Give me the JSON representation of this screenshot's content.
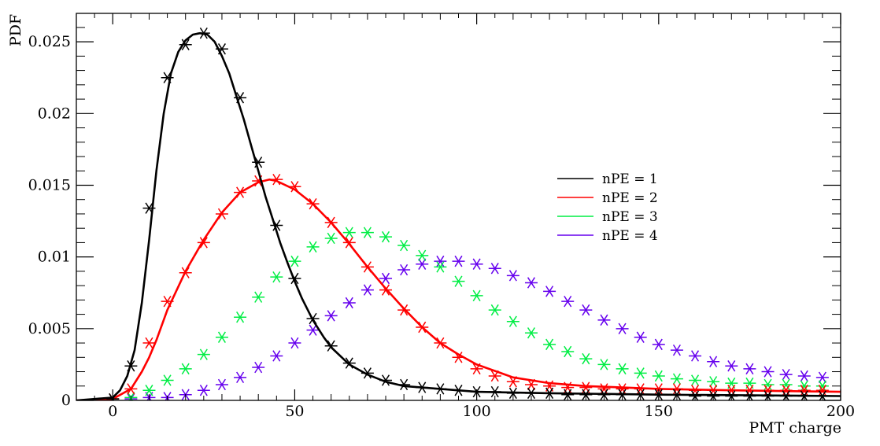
{
  "chart_data": {
    "type": "line",
    "xlabel": "PMT charge",
    "ylabel": "PDF",
    "xlim": [
      -10,
      200
    ],
    "ylim": [
      0,
      0.0255
    ],
    "x_ticks": [
      0,
      50,
      100,
      150,
      200
    ],
    "x_tick_labels": [
      "0",
      "50",
      "100",
      "150",
      "200"
    ],
    "y_ticks": [
      0,
      0.005,
      0.01,
      0.015,
      0.02,
      0.025
    ],
    "y_tick_labels": [
      "0",
      "0.005",
      "0.01",
      "0.015",
      "0.02",
      "0.025"
    ],
    "grid": false,
    "legend_position": "center-right",
    "series": [
      {
        "name": "nPE = 1",
        "color": "#000000",
        "curve": {
          "x": [
            -10,
            0,
            2,
            4,
            6,
            8,
            10,
            12,
            14,
            16,
            18,
            20,
            22,
            24,
            26,
            28,
            30,
            32,
            34,
            36,
            38,
            40,
            42,
            44,
            46,
            48,
            50,
            52,
            55,
            58,
            60,
            65,
            70,
            75,
            80,
            90,
            100,
            120,
            150,
            200
          ],
          "y": [
            0,
            0.0002,
            0.0007,
            0.0017,
            0.0035,
            0.0068,
            0.0112,
            0.016,
            0.02,
            0.0228,
            0.0243,
            0.0251,
            0.0255,
            0.0256,
            0.0255,
            0.025,
            0.024,
            0.0228,
            0.0212,
            0.0196,
            0.0178,
            0.016,
            0.0142,
            0.0126,
            0.011,
            0.0096,
            0.0083,
            0.0071,
            0.0056,
            0.0044,
            0.0037,
            0.0025,
            0.0018,
            0.0013,
            0.001,
            0.0008,
            0.0006,
            0.0005,
            0.0004,
            0.0003
          ]
        },
        "markers": {
          "x": [
            0,
            5,
            10,
            15,
            20,
            25,
            30,
            35,
            40,
            45,
            50,
            55,
            60,
            65,
            70,
            75,
            80,
            85,
            90,
            95,
            100,
            105,
            110,
            115,
            120,
            125,
            130,
            135,
            140,
            145,
            150,
            155,
            160,
            165,
            170,
            175,
            180,
            185,
            190,
            195
          ],
          "y": [
            0.0001,
            0.0024,
            0.0134,
            0.0225,
            0.0248,
            0.0256,
            0.0245,
            0.0211,
            0.0166,
            0.0122,
            0.0085,
            0.0057,
            0.0038,
            0.0026,
            0.0019,
            0.0014,
            0.0011,
            0.0009,
            0.0008,
            0.0007,
            0.0006,
            0.0006,
            0.0005,
            0.0005,
            0.0005,
            0.0004,
            0.0004,
            0.0004,
            0.0004,
            0.0004,
            0.0004,
            0.0004,
            0.0003,
            0.0003,
            0.0003,
            0.0003,
            0.0003,
            0.0003,
            0.0003,
            0.0003
          ]
        }
      },
      {
        "name": "nPE = 2",
        "color": "#ff0000",
        "curve": {
          "x": [
            -10,
            0,
            5,
            8,
            10,
            12,
            15,
            20,
            25,
            30,
            35,
            40,
            43,
            45,
            50,
            55,
            60,
            65,
            70,
            75,
            80,
            85,
            90,
            95,
            100,
            110,
            120,
            130,
            140,
            150,
            170,
            200
          ],
          "y": [
            0,
            0.0001,
            0.0008,
            0.002,
            0.003,
            0.0042,
            0.0063,
            0.009,
            0.0112,
            0.0131,
            0.0145,
            0.0152,
            0.0154,
            0.0153,
            0.0147,
            0.0137,
            0.0124,
            0.0109,
            0.0093,
            0.0078,
            0.0064,
            0.0051,
            0.004,
            0.0032,
            0.0025,
            0.0016,
            0.0012,
            0.001,
            0.0009,
            0.0008,
            0.0007,
            0.0006
          ]
        },
        "markers": {
          "x": [
            0,
            5,
            10,
            15,
            20,
            25,
            30,
            35,
            40,
            45,
            50,
            55,
            60,
            65,
            70,
            75,
            80,
            85,
            90,
            95,
            100,
            105,
            110,
            115,
            120,
            125,
            130,
            135,
            140,
            145,
            150,
            155,
            160,
            165,
            170,
            175,
            180,
            185,
            190,
            195
          ],
          "y": [
            0.0001,
            0.0008,
            0.004,
            0.0069,
            0.0089,
            0.011,
            0.013,
            0.0145,
            0.0153,
            0.0154,
            0.0149,
            0.0137,
            0.0124,
            0.011,
            0.0093,
            0.0077,
            0.0063,
            0.0051,
            0.004,
            0.003,
            0.0022,
            0.0017,
            0.0013,
            0.0011,
            0.001,
            0.0009,
            0.0009,
            0.0008,
            0.0008,
            0.0008,
            0.0008,
            0.0008,
            0.0007,
            0.0007,
            0.0007,
            0.0007,
            0.0007,
            0.0007,
            0.0007,
            0.0007
          ]
        }
      },
      {
        "name": "nPE = 3",
        "color": "#00ee44",
        "markers": {
          "x": [
            0,
            5,
            10,
            15,
            20,
            25,
            30,
            35,
            40,
            45,
            50,
            55,
            60,
            65,
            70,
            75,
            80,
            85,
            90,
            95,
            100,
            105,
            110,
            115,
            120,
            125,
            130,
            135,
            140,
            145,
            150,
            155,
            160,
            165,
            170,
            175,
            180,
            185,
            190,
            195
          ],
          "y": [
            0.0001,
            0.0002,
            0.0007,
            0.0014,
            0.0022,
            0.0032,
            0.0044,
            0.0058,
            0.0072,
            0.0086,
            0.0097,
            0.0107,
            0.0113,
            0.0117,
            0.0117,
            0.0114,
            0.0108,
            0.0101,
            0.0093,
            0.0083,
            0.0073,
            0.0063,
            0.0055,
            0.0047,
            0.0039,
            0.0034,
            0.0029,
            0.0025,
            0.0022,
            0.0019,
            0.0017,
            0.0015,
            0.0014,
            0.0013,
            0.0012,
            0.0012,
            0.0011,
            0.0011,
            0.001,
            0.001
          ]
        }
      },
      {
        "name": "nPE = 4",
        "color": "#6600ee",
        "markers": {
          "x": [
            0,
            5,
            10,
            15,
            20,
            25,
            30,
            35,
            40,
            45,
            50,
            55,
            60,
            65,
            70,
            75,
            80,
            85,
            90,
            95,
            100,
            105,
            110,
            115,
            120,
            125,
            130,
            135,
            140,
            145,
            150,
            155,
            160,
            165,
            170,
            175,
            180,
            185,
            190,
            195
          ],
          "y": [
            0.0001,
            0.0001,
            0.0002,
            0.0002,
            0.0004,
            0.0007,
            0.0011,
            0.0016,
            0.0023,
            0.0031,
            0.004,
            0.0049,
            0.0059,
            0.0068,
            0.0077,
            0.0085,
            0.0091,
            0.0095,
            0.0097,
            0.0097,
            0.0095,
            0.0092,
            0.0087,
            0.0082,
            0.0076,
            0.0069,
            0.0063,
            0.0056,
            0.005,
            0.0044,
            0.0039,
            0.0035,
            0.0031,
            0.0027,
            0.0024,
            0.0022,
            0.002,
            0.0018,
            0.0017,
            0.0016
          ]
        }
      }
    ]
  }
}
